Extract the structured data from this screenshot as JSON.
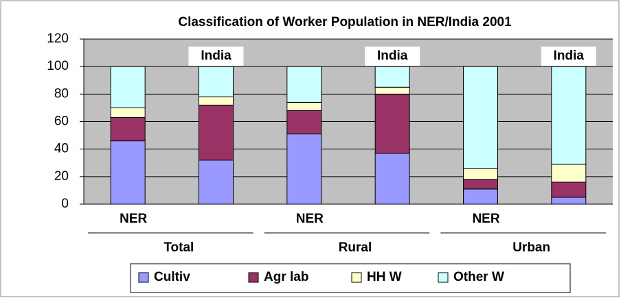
{
  "chart_data": {
    "type": "stacked-bar",
    "title": "Classification of Worker Population in NER/India 2001",
    "categories": [
      "NER",
      "India",
      "NER",
      "India",
      "NER",
      "India"
    ],
    "groups": [
      "Total",
      "Rural",
      "Urban"
    ],
    "series": [
      {
        "name": "Cultiv",
        "color": "#9999ff",
        "values": [
          46,
          32,
          51,
          37,
          11,
          5
        ]
      },
      {
        "name": "Agr lab",
        "color": "#993366",
        "values": [
          17,
          40,
          17,
          43,
          7,
          11
        ]
      },
      {
        "name": "HH W",
        "color": "#ffffcc",
        "values": [
          7,
          6,
          6,
          5,
          8,
          13
        ]
      },
      {
        "name": "Other W",
        "color": "#ccffff",
        "values": [
          30,
          22,
          26,
          15,
          74,
          71
        ]
      }
    ],
    "ylim": [
      0,
      120
    ],
    "yticks": [
      0,
      20,
      40,
      60,
      80,
      100,
      120
    ],
    "grid": true,
    "legend": "bottom"
  }
}
